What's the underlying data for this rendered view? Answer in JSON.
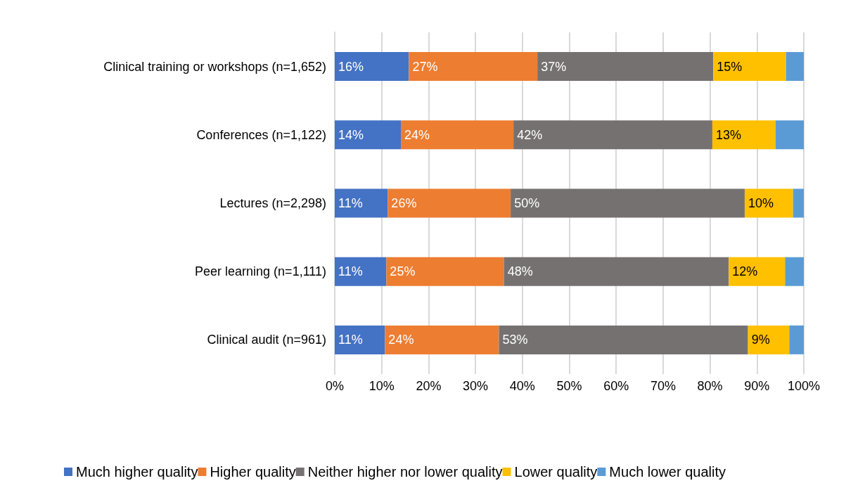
{
  "chart_data": {
    "type": "bar",
    "orientation": "horizontal",
    "stacked": true,
    "categories": [
      "Clinical training or workshops (n=1,652)",
      "Conferences (n=1,122)",
      "Lectures (n=2,298)",
      "Peer learning (n=1,111)",
      "Clinical audit (n=961)"
    ],
    "series": [
      {
        "name": "Much higher quality",
        "color": "#4472c4",
        "values": [
          15.8,
          14.1,
          11.3,
          11.0,
          10.7
        ],
        "value_labels": [
          "16%",
          "14%",
          "11%",
          "11%",
          "11%"
        ]
      },
      {
        "name": "Higher quality",
        "color": "#ed7d31",
        "values": [
          27.4,
          24.0,
          26.2,
          25.1,
          24.3
        ],
        "value_labels": [
          "27%",
          "24%",
          "26%",
          "25%",
          "24%"
        ]
      },
      {
        "name": "Neither higher nor lower quality",
        "color": "#767171",
        "values": [
          37.5,
          42.4,
          49.9,
          47.9,
          53.1
        ],
        "value_labels": [
          "37%",
          "42%",
          "50%",
          "48%",
          "53%"
        ]
      },
      {
        "name": "Lower quality",
        "color": "#ffc000",
        "values": [
          15.5,
          13.5,
          10.3,
          12.0,
          8.8
        ],
        "value_labels": [
          "15%",
          "13%",
          "10%",
          "12%",
          "9%"
        ]
      },
      {
        "name": "Much lower quality",
        "color": "#5b9bd5",
        "values": [
          3.8,
          6.0,
          2.3,
          4.0,
          3.1
        ]
      }
    ],
    "xlim": [
      0,
      100
    ],
    "xticks": [
      {
        "value": 0,
        "label": "0%"
      },
      {
        "value": 10,
        "label": "10%"
      },
      {
        "value": 20,
        "label": "20%"
      },
      {
        "value": 30,
        "label": "30%"
      },
      {
        "value": 40,
        "label": "40%"
      },
      {
        "value": 50,
        "label": "50%"
      },
      {
        "value": 60,
        "label": "60%"
      },
      {
        "value": 70,
        "label": "70%"
      },
      {
        "value": 80,
        "label": "80%"
      },
      {
        "value": 90,
        "label": "90%"
      },
      {
        "value": 100,
        "label": "100%"
      }
    ],
    "grid": "x",
    "legend": "bottom"
  }
}
